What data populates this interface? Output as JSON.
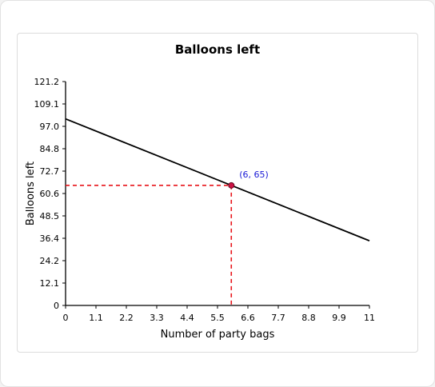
{
  "chart_data": {
    "type": "line",
    "title": "Balloons left",
    "xlabel": "Number of party bags",
    "ylabel": "Balloons left",
    "xlim": [
      0,
      11
    ],
    "ylim": [
      0,
      121.2
    ],
    "x_ticks": [
      "0",
      "1.1",
      "2.2",
      "3.3",
      "4.4",
      "5.5",
      "6.6",
      "7.7",
      "8.8",
      "9.9",
      "11"
    ],
    "y_ticks": [
      "0",
      "12.1",
      "24.2",
      "36.4",
      "48.5",
      "60.6",
      "72.7",
      "84.8",
      "97.0",
      "109.1",
      "121.2"
    ],
    "series": [
      {
        "x": [
          0,
          11
        ],
        "y": [
          101,
          35
        ]
      }
    ],
    "highlight": {
      "x": 6,
      "y": 65,
      "label": "(6, 65)"
    },
    "colors": {
      "line": "#000000",
      "guide": "#e8141b",
      "point": "#cc1144",
      "point_label": "#1a1ad6"
    }
  }
}
